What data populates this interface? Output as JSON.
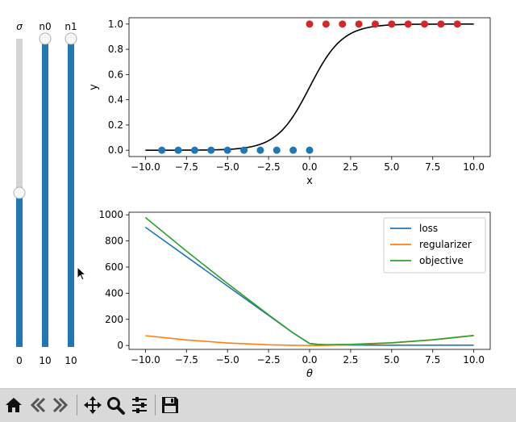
{
  "sliders": [
    {
      "name": "sigma",
      "label": "σ",
      "value_text": "0",
      "level": 0.5
    },
    {
      "name": "n0",
      "label": "n0",
      "value_text": "10",
      "level": 1.0
    },
    {
      "name": "n1",
      "label": "n1",
      "value_text": "10",
      "level": 1.0
    }
  ],
  "colors": {
    "slider_fill": "#1f77b4",
    "slider_track": "#d4d4d4",
    "blue": "#1f77b4",
    "red": "#d62728",
    "orange": "#ff7f0e",
    "green": "#2ca02c",
    "curve": "#000000",
    "toolbar_bg": "#d9d9d9"
  },
  "toolbar": {
    "buttons": [
      {
        "name": "home-button",
        "icon": "home-icon"
      },
      {
        "name": "back-button",
        "icon": "arrow-left-icon"
      },
      {
        "name": "forward-button",
        "icon": "arrow-right-icon"
      },
      {
        "name": "pan-button",
        "icon": "move-icon"
      },
      {
        "name": "zoom-button",
        "icon": "magnifier-icon"
      },
      {
        "name": "configure-subplots-button",
        "icon": "sliders-icon"
      },
      {
        "name": "save-button",
        "icon": "floppy-disk-icon"
      }
    ]
  },
  "chart_data": [
    {
      "type": "scatter",
      "xlabel": "x",
      "ylabel": "y",
      "xlim": [
        -11,
        11
      ],
      "ylim": [
        -0.05,
        1.05
      ],
      "xticks": [
        -10.0,
        -7.5,
        -5.0,
        -2.5,
        0.0,
        2.5,
        5.0,
        7.5,
        10.0
      ],
      "xtick_labels": [
        "−10.0",
        "−7.5",
        "−5.0",
        "−2.5",
        "0.0",
        "2.5",
        "5.0",
        "7.5",
        "10.0"
      ],
      "yticks": [
        0.0,
        0.2,
        0.4,
        0.6,
        0.8,
        1.0
      ],
      "ytick_labels": [
        "0.0",
        "0.2",
        "0.4",
        "0.6",
        "0.8",
        "1.0"
      ],
      "series": [
        {
          "color": "#1f77b4",
          "kind": "scatter",
          "x": [
            -9,
            -8,
            -7,
            -6,
            -5,
            -4,
            -3,
            -2,
            -1,
            0
          ],
          "y": [
            0,
            0,
            0,
            0,
            0,
            0,
            0,
            0,
            0,
            0
          ]
        },
        {
          "color": "#d62728",
          "kind": "scatter",
          "x": [
            0,
            1,
            2,
            3,
            4,
            5,
            6,
            7,
            8,
            9
          ],
          "y": [
            1,
            1,
            1,
            1,
            1,
            1,
            1,
            1,
            1,
            1
          ]
        },
        {
          "color": "#000000",
          "kind": "sigmoid",
          "x_range": [
            -10,
            10
          ]
        }
      ],
      "grid": false
    },
    {
      "type": "line",
      "xlabel": "θ",
      "ylabel": "",
      "xlim": [
        -11,
        11
      ],
      "ylim": [
        -30,
        1020
      ],
      "xticks": [
        -10.0,
        -7.5,
        -5.0,
        -2.5,
        0.0,
        2.5,
        5.0,
        7.5,
        10.0
      ],
      "xtick_labels": [
        "−10.0",
        "−7.5",
        "−5.0",
        "−2.5",
        "0.0",
        "2.5",
        "5.0",
        "7.5",
        "10.0"
      ],
      "yticks": [
        0,
        200,
        400,
        600,
        800,
        1000
      ],
      "ytick_labels": [
        "0",
        "200",
        "400",
        "600",
        "800",
        "1000"
      ],
      "x": [
        -10,
        -7.5,
        -5,
        -2.5,
        -1,
        0,
        0.5,
        1,
        2.5,
        5,
        7.5,
        10
      ],
      "series": [
        {
          "name": "loss",
          "color": "#1f77b4",
          "values": [
            905,
            680,
            455,
            230,
            95,
            15,
            8,
            5,
            3,
            2,
            2,
            2
          ]
        },
        {
          "name": "regularizer",
          "color": "#ff7f0e",
          "values": [
            75,
            42,
            19,
            5,
            1,
            0,
            0,
            1,
            5,
            19,
            42,
            75
          ]
        },
        {
          "name": "objective",
          "color": "#2ca02c",
          "values": [
            980,
            722,
            474,
            235,
            96,
            15,
            8,
            6,
            8,
            21,
            44,
            77
          ]
        }
      ],
      "legend": "top-right",
      "grid": false
    }
  ]
}
